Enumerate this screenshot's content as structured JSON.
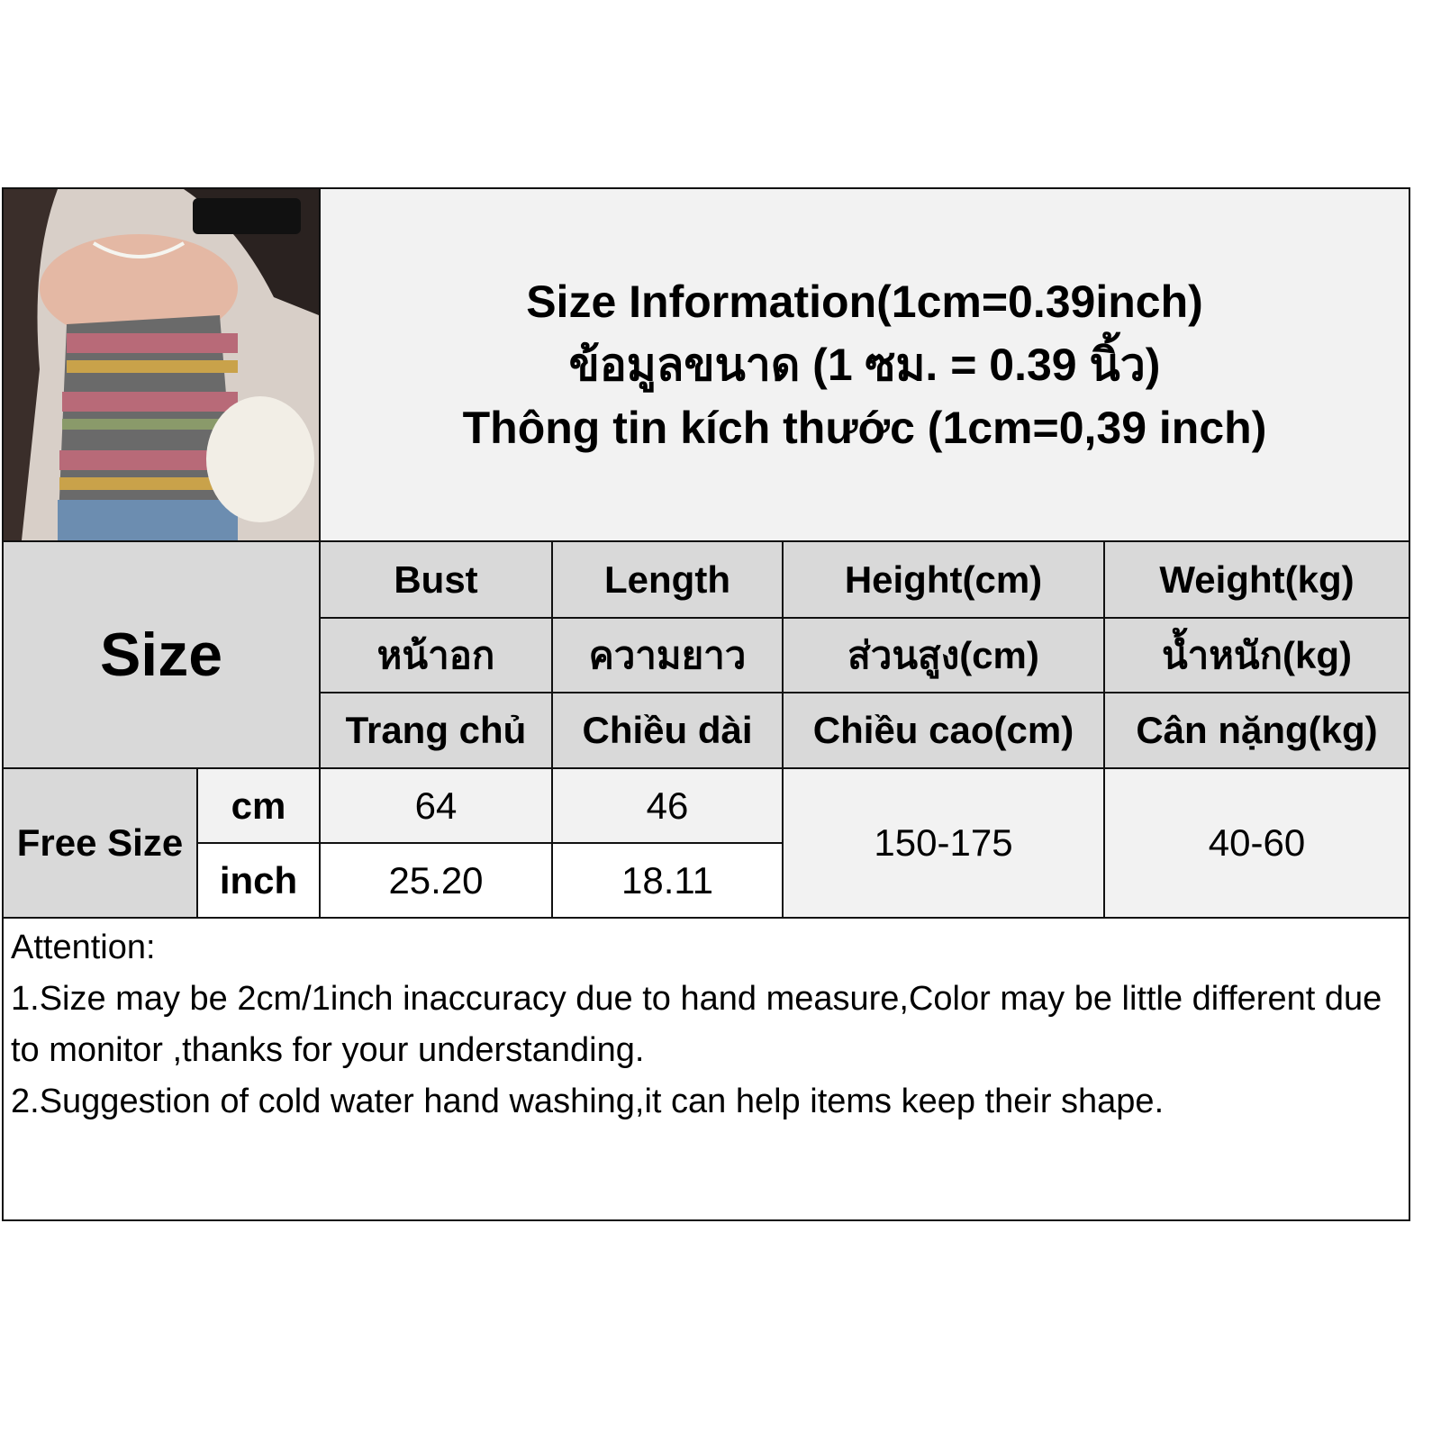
{
  "title": {
    "line1": "Size Information(1cm=0.39inch)",
    "line2": "ข้อมูลขนาด (1 ซม. = 0.39 นิ้ว)",
    "line3": "Thông tin kích thước (1cm=0,39 inch)"
  },
  "size_label": "Size",
  "columns": [
    {
      "en": "Bust",
      "th": "หน้าอก",
      "vi": "Trang chủ"
    },
    {
      "en": "Length",
      "th": "ความยาว",
      "vi": "Chiều dài"
    },
    {
      "en": "Height(cm)",
      "th": "ส่วนสูง(cm)",
      "vi": "Chiều cao(cm)"
    },
    {
      "en": "Weight(kg)",
      "th": "น้ำหนัก(kg)",
      "vi": "Cân nặng(kg)"
    }
  ],
  "rows": {
    "size_name": "Free Size",
    "cm": {
      "unit": "cm",
      "bust": "64",
      "length": "46"
    },
    "inch": {
      "unit": "inch",
      "bust": "25.20",
      "length": "18.11"
    },
    "height": "150-175",
    "weight": "40-60"
  },
  "notes": {
    "heading": "Attention:",
    "line1": "1.Size may be 2cm/1inch inaccuracy due to hand measure,Color may be little different due to monitor ,thanks for your understanding.",
    "line2": "2.Suggestion of cold water hand washing,it can help items keep their shape."
  },
  "colors": {
    "header_bg": "#d9d9d9",
    "light_bg": "#f2f2f2",
    "border": "#111111"
  }
}
